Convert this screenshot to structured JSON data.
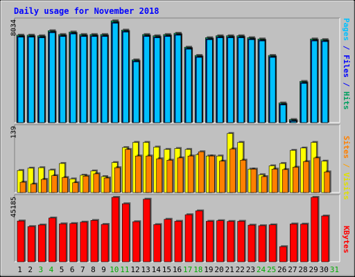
{
  "title": "Daily usage for November 2018",
  "days": [
    "1",
    "2",
    "3",
    "4",
    "5",
    "6",
    "7",
    "8",
    "9",
    "10",
    "11",
    "12",
    "13",
    "14",
    "15",
    "16",
    "17",
    "18",
    "19",
    "20",
    "21",
    "22",
    "23",
    "24",
    "25",
    "26",
    "27",
    "28",
    "29",
    "30",
    "31"
  ],
  "weekend_days": [
    "3",
    "4",
    "10",
    "11",
    "17",
    "18",
    "24",
    "25",
    "31"
  ],
  "colors": {
    "background": "#ffffff",
    "frame": "#c0c0c0",
    "panel": "#c0c0c0",
    "grid": "#999999",
    "title": "#0000ff",
    "weekday_label": "#000000",
    "weekend_label": "#00aa00",
    "pages": "#00c0ff",
    "files": "#0000ff",
    "hits": "#00a060",
    "visits": "#ffff00",
    "sites": "#ff8000",
    "kbytes": "#ff0000"
  },
  "labels": {
    "hits_legend": [
      {
        "text": "Pages",
        "color": "#00c0ff"
      },
      {
        "text": " / ",
        "color": "#0000ff"
      },
      {
        "text": "Files",
        "color": "#0000ff"
      },
      {
        "text": " / ",
        "color": "#0000ff"
      },
      {
        "text": "Hits",
        "color": "#00a060"
      }
    ],
    "visits_legend": [
      {
        "text": "Sites",
        "color": "#ff8000"
      },
      {
        "text": " / ",
        "color": "#ffa000"
      },
      {
        "text": "Visits",
        "color": "#e0e000"
      }
    ],
    "kbytes_legend": [
      {
        "text": "KBytes",
        "color": "#ff0000"
      }
    ]
  },
  "chart_data": [
    {
      "type": "bar",
      "name": "hits-panel",
      "max_label": "8034",
      "ylim": [
        0,
        8034
      ],
      "series": [
        {
          "name": "Hits",
          "values": [
            6900,
            6900,
            6850,
            7250,
            6950,
            7150,
            6950,
            6950,
            6950,
            8034,
            7300,
            4950,
            6950,
            6850,
            6950,
            7050,
            5950,
            5300,
            6700,
            6850,
            6850,
            6850,
            6700,
            6600,
            5300,
            1550,
            240,
            3250,
            6600,
            6550
          ]
        },
        {
          "name": "Files",
          "values": [
            6850,
            6850,
            6800,
            7200,
            6900,
            7100,
            6900,
            6900,
            6900,
            7950,
            7250,
            4900,
            6900,
            6800,
            6900,
            7000,
            5900,
            5250,
            6650,
            6800,
            6800,
            6800,
            6650,
            6550,
            5250,
            1500,
            200,
            3200,
            6550,
            6500
          ]
        },
        {
          "name": "Pages",
          "values": [
            6850,
            6850,
            6800,
            7200,
            6900,
            7100,
            6900,
            6900,
            6900,
            7950,
            7250,
            4900,
            6900,
            6800,
            6900,
            7000,
            5900,
            5250,
            6650,
            6800,
            6800,
            6800,
            6650,
            6550,
            5250,
            1500,
            200,
            3200,
            6550,
            6500
          ]
        }
      ]
    },
    {
      "type": "bar",
      "name": "visits-panel",
      "max_label": "139",
      "ylim": [
        0,
        139
      ],
      "series": [
        {
          "name": "Visits",
          "values": [
            47,
            52,
            53,
            48,
            62,
            29,
            37,
            46,
            34,
            64,
            96,
            107,
            107,
            97,
            92,
            94,
            92,
            81,
            78,
            78,
            126,
            107,
            50,
            38,
            57,
            62,
            90,
            95,
            107,
            67
          ]
        },
        {
          "name": "Sites",
          "values": [
            22,
            18,
            28,
            36,
            32,
            21,
            35,
            40,
            31,
            53,
            92,
            78,
            78,
            72,
            69,
            74,
            78,
            87,
            78,
            67,
            93,
            69,
            50,
            34,
            50,
            49,
            54,
            66,
            74,
            44
          ]
        }
      ]
    },
    {
      "type": "bar",
      "name": "kbytes-panel",
      "max_label": "45185",
      "ylim": [
        0,
        45185
      ],
      "series": [
        {
          "name": "KBytes",
          "values": [
            28600,
            24700,
            25800,
            30700,
            26600,
            26800,
            27800,
            29000,
            26200,
            45185,
            40700,
            28100,
            43900,
            26100,
            29800,
            28400,
            33000,
            35700,
            28400,
            28800,
            28300,
            28400,
            25700,
            25300,
            25900,
            10600,
            26500,
            26400,
            45185,
            32100
          ]
        }
      ]
    }
  ]
}
